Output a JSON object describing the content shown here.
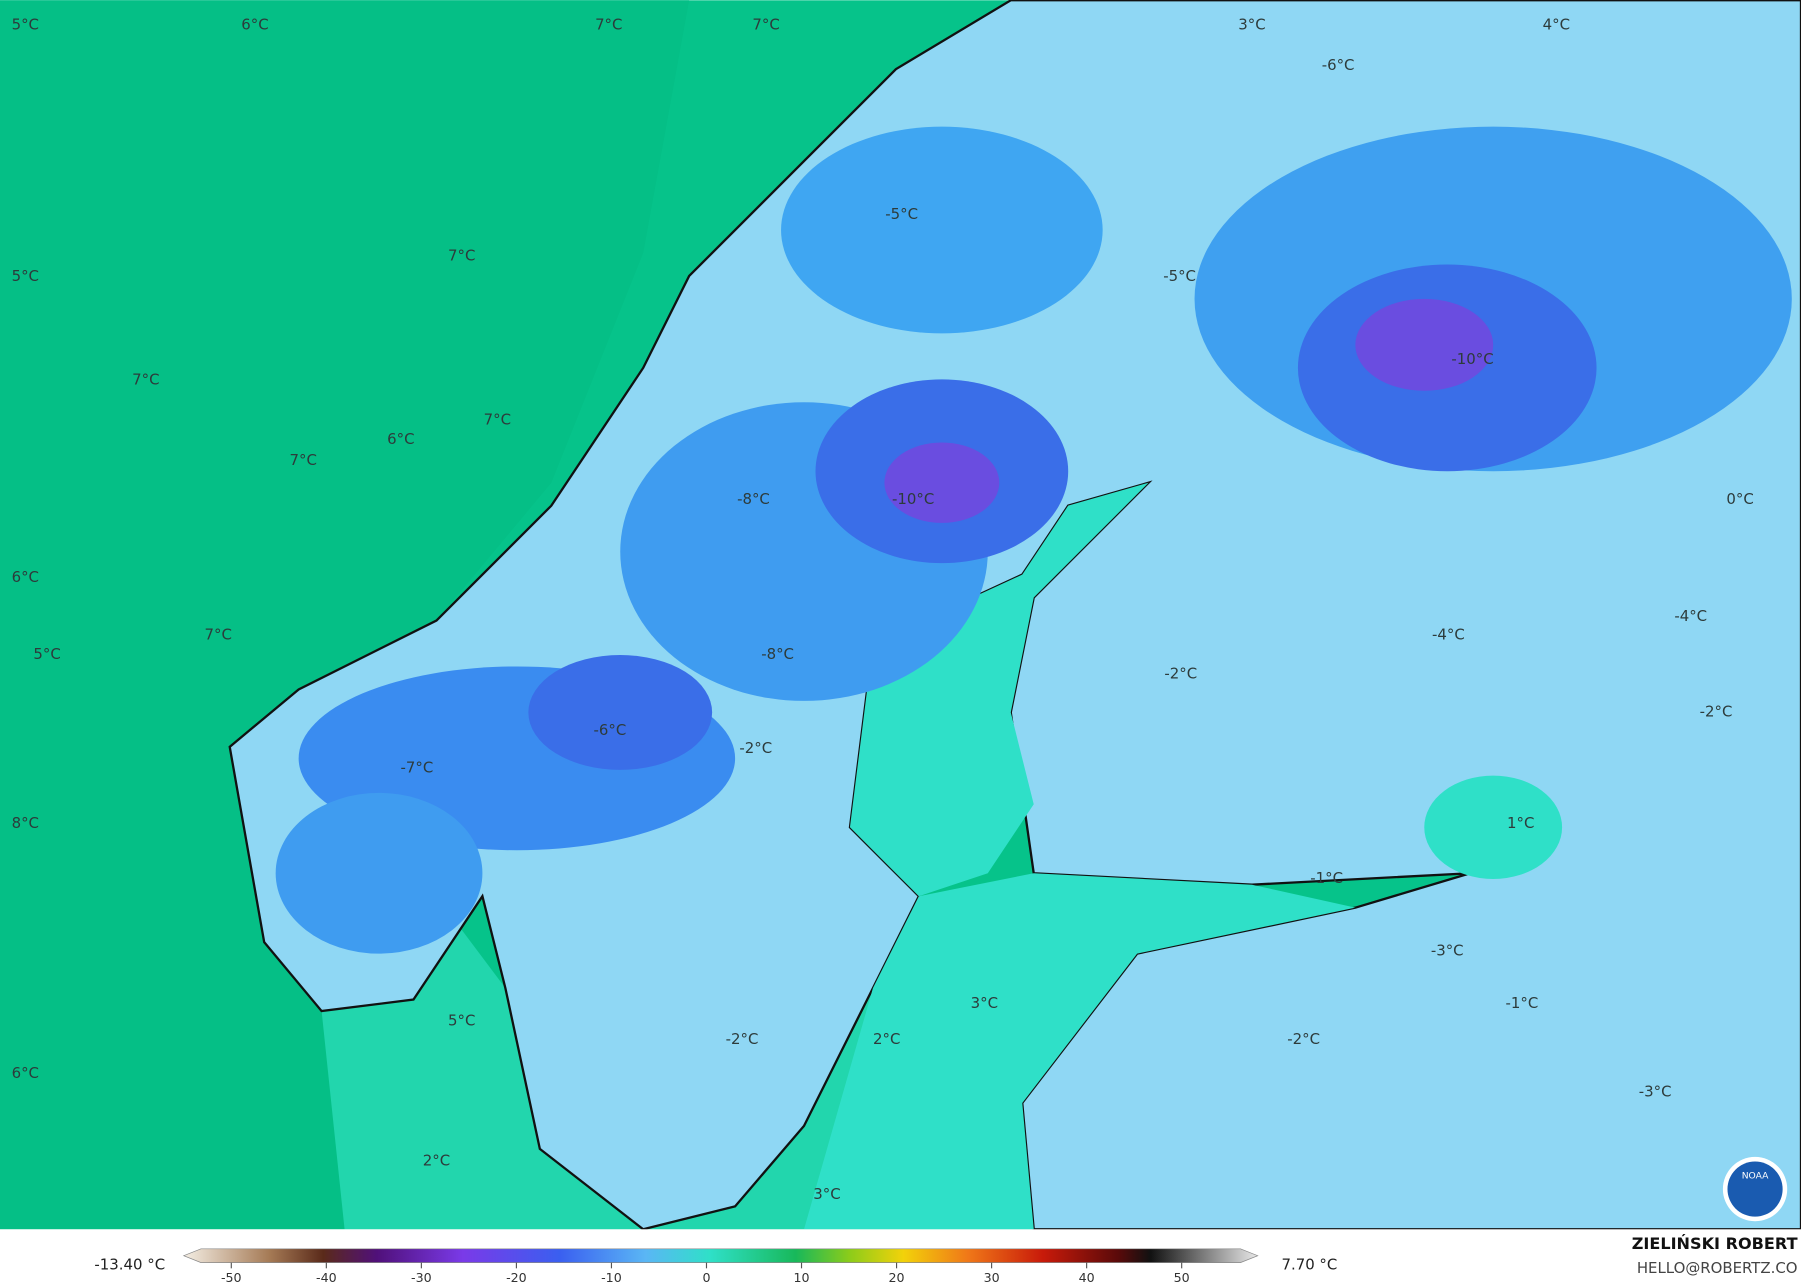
{
  "map": {
    "labels": [
      "5°C",
      "6°C",
      "7°C",
      "7°C",
      "3°C",
      "4°C",
      "-6°C",
      "-5°C",
      "7°C",
      "5°C",
      "-5°C",
      "7°C",
      "-10°C",
      "7°C",
      "6°C",
      "7°C",
      "-8°C",
      "-10°C",
      "0°C",
      "6°C",
      "-4°C",
      "-4°C",
      "7°C",
      "5°C",
      "-8°C",
      "-2°C",
      "-6°C",
      "-2°C",
      "-2°C",
      "-7°C",
      "1°C",
      "8°C",
      "-1°C",
      "-3°C",
      "-1°C",
      "3°C",
      "5°C",
      "-2°C",
      "2°C",
      "-2°C",
      "6°C",
      "-3°C",
      "2°C",
      "3°C"
    ],
    "logo": "NOAA"
  },
  "colorbar": {
    "lim": [
      -55,
      58
    ],
    "ticks": [
      -50,
      -40,
      -30,
      -20,
      -10,
      0,
      10,
      20,
      30,
      40,
      50
    ],
    "min_label": "-13.40 °C",
    "max_label": "7.70 °C"
  },
  "footer": {
    "author": "ZIELIŃSKI ROBERT",
    "email": "HELLO@ROBERTZ.CO"
  }
}
